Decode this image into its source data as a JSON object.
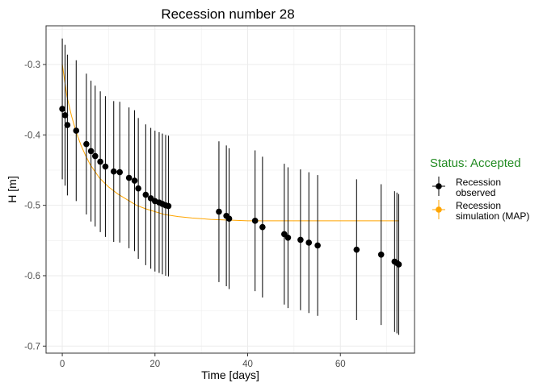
{
  "chart_data": {
    "type": "scatter",
    "title": "Recession number 28",
    "xlabel": "Time [days]",
    "ylabel": "H [m]",
    "xlim": [
      -3.5,
      76
    ],
    "ylim": [
      -0.71,
      -0.245
    ],
    "x_ticks": [
      0,
      20,
      40,
      60
    ],
    "y_ticks": [
      -0.3,
      -0.4,
      -0.5,
      -0.6,
      -0.7
    ],
    "grid": true,
    "legend": {
      "title": "Status: Accepted",
      "title_color": "#228b22",
      "placement": "right",
      "entries": [
        {
          "label_line1": "Recession",
          "label_line2": "observed",
          "color": "#000000"
        },
        {
          "label_line1": "Recession",
          "label_line2": "simulation (MAP)",
          "color": "#ffa500"
        }
      ]
    },
    "series": [
      {
        "name": "Recession observed",
        "color": "#000000",
        "points": [
          {
            "x": 0.0,
            "y": -0.363,
            "lo": -0.463,
            "hi": -0.263
          },
          {
            "x": 0.6,
            "y": -0.372,
            "lo": -0.472,
            "hi": -0.272
          },
          {
            "x": 1.1,
            "y": -0.386,
            "lo": -0.486,
            "hi": -0.286
          },
          {
            "x": 3.0,
            "y": -0.394,
            "lo": -0.494,
            "hi": -0.294
          },
          {
            "x": 5.2,
            "y": -0.413,
            "lo": -0.513,
            "hi": -0.313
          },
          {
            "x": 6.2,
            "y": -0.423,
            "lo": -0.523,
            "hi": -0.323
          },
          {
            "x": 7.1,
            "y": -0.43,
            "lo": -0.53,
            "hi": -0.33
          },
          {
            "x": 8.2,
            "y": -0.438,
            "lo": -0.538,
            "hi": -0.338
          },
          {
            "x": 9.3,
            "y": -0.445,
            "lo": -0.545,
            "hi": -0.345
          },
          {
            "x": 11.1,
            "y": -0.452,
            "lo": -0.552,
            "hi": -0.352
          },
          {
            "x": 12.4,
            "y": -0.453,
            "lo": -0.553,
            "hi": -0.353
          },
          {
            "x": 14.4,
            "y": -0.461,
            "lo": -0.561,
            "hi": -0.361
          },
          {
            "x": 15.6,
            "y": -0.465,
            "lo": -0.565,
            "hi": -0.365
          },
          {
            "x": 16.4,
            "y": -0.476,
            "lo": -0.576,
            "hi": -0.376
          },
          {
            "x": 18.0,
            "y": -0.485,
            "lo": -0.585,
            "hi": -0.385
          },
          {
            "x": 19.1,
            "y": -0.49,
            "lo": -0.59,
            "hi": -0.39
          },
          {
            "x": 20.0,
            "y": -0.494,
            "lo": -0.594,
            "hi": -0.394
          },
          {
            "x": 20.9,
            "y": -0.496,
            "lo": -0.596,
            "hi": -0.396
          },
          {
            "x": 21.6,
            "y": -0.498,
            "lo": -0.598,
            "hi": -0.398
          },
          {
            "x": 22.3,
            "y": -0.5,
            "lo": -0.6,
            "hi": -0.4
          },
          {
            "x": 22.9,
            "y": -0.501,
            "lo": -0.601,
            "hi": -0.401
          },
          {
            "x": 33.8,
            "y": -0.509,
            "lo": -0.609,
            "hi": -0.409
          },
          {
            "x": 35.4,
            "y": -0.515,
            "lo": -0.615,
            "hi": -0.415
          },
          {
            "x": 36.0,
            "y": -0.519,
            "lo": -0.619,
            "hi": -0.419
          },
          {
            "x": 41.6,
            "y": -0.522,
            "lo": -0.622,
            "hi": -0.422
          },
          {
            "x": 43.2,
            "y": -0.531,
            "lo": -0.631,
            "hi": -0.431
          },
          {
            "x": 47.9,
            "y": -0.541,
            "lo": -0.641,
            "hi": -0.441
          },
          {
            "x": 48.7,
            "y": -0.546,
            "lo": -0.646,
            "hi": -0.446
          },
          {
            "x": 51.4,
            "y": -0.549,
            "lo": -0.649,
            "hi": -0.449
          },
          {
            "x": 53.2,
            "y": -0.553,
            "lo": -0.653,
            "hi": -0.453
          },
          {
            "x": 55.1,
            "y": -0.557,
            "lo": -0.657,
            "hi": -0.457
          },
          {
            "x": 63.5,
            "y": -0.563,
            "lo": -0.663,
            "hi": -0.463
          },
          {
            "x": 68.8,
            "y": -0.57,
            "lo": -0.67,
            "hi": -0.47
          },
          {
            "x": 71.7,
            "y": -0.58,
            "lo": -0.68,
            "hi": -0.48
          },
          {
            "x": 72.2,
            "y": -0.582,
            "lo": -0.682,
            "hi": -0.482
          },
          {
            "x": 72.6,
            "y": -0.584,
            "lo": -0.684,
            "hi": -0.484
          }
        ]
      },
      {
        "name": "Recession simulation (MAP)",
        "color": "#ffa500",
        "type": "line",
        "points": [
          {
            "x": 0.0,
            "y": -0.3
          },
          {
            "x": 1.0,
            "y": -0.345
          },
          {
            "x": 2.0,
            "y": -0.373
          },
          {
            "x": 3.0,
            "y": -0.396
          },
          {
            "x": 4.0,
            "y": -0.414
          },
          {
            "x": 5.0,
            "y": -0.429
          },
          {
            "x": 6.0,
            "y": -0.442
          },
          {
            "x": 8.0,
            "y": -0.461
          },
          {
            "x": 10.0,
            "y": -0.474
          },
          {
            "x": 12.0,
            "y": -0.484
          },
          {
            "x": 14.0,
            "y": -0.492
          },
          {
            "x": 16.0,
            "y": -0.5
          },
          {
            "x": 18.0,
            "y": -0.505
          },
          {
            "x": 20.0,
            "y": -0.509
          },
          {
            "x": 22.0,
            "y": -0.513
          },
          {
            "x": 25.0,
            "y": -0.516
          },
          {
            "x": 28.0,
            "y": -0.518
          },
          {
            "x": 32.0,
            "y": -0.52
          },
          {
            "x": 36.0,
            "y": -0.521
          },
          {
            "x": 40.0,
            "y": -0.522
          },
          {
            "x": 50.0,
            "y": -0.522
          },
          {
            "x": 60.0,
            "y": -0.522
          },
          {
            "x": 72.6,
            "y": -0.522
          }
        ]
      }
    ]
  }
}
